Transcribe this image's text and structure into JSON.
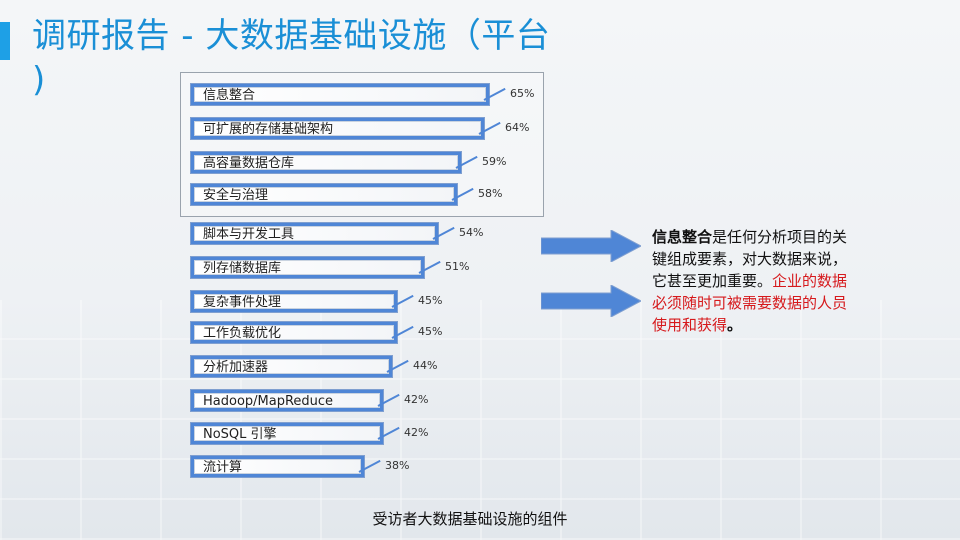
{
  "title": {
    "line1": "调研报告 - 大数据基础设施（平台",
    "line2": ")"
  },
  "chart_data": {
    "type": "bar",
    "categories": [
      "信息整合",
      "可扩展的存储基础架构",
      "高容量数据仓库",
      "安全与治理",
      "脚本与开发工具",
      "列存储数据库",
      "复杂事件处理",
      "工作负载优化",
      "分析加速器",
      "Hadoop/MapReduce",
      "NoSQL 引擎",
      "流计算"
    ],
    "values": [
      65,
      64,
      59,
      58,
      54,
      51,
      45,
      45,
      44,
      42,
      42,
      38
    ],
    "value_labels": [
      "65%",
      "64%",
      "59%",
      "58%",
      "54%",
      "51%",
      "45%",
      "45%",
      "44%",
      "42%",
      "42%",
      "38%"
    ],
    "highlighted_group": [
      "信息整合",
      "可扩展的存储基础架构",
      "高容量数据仓库",
      "安全与治理"
    ],
    "bar_color": "#4f86d6",
    "xlabel": "",
    "ylabel": ""
  },
  "callout": {
    "bold_text": "信息整合",
    "normal_text": "是任何分析项目的关键组成要素，对大数据来说，它甚至更加重要。",
    "red_text": "企业的数据必须随时可被需要数据的人员使用和获得",
    "end_text": "。"
  },
  "footer": "受访者大数据基础设施的组件",
  "colors": {
    "title": "#1a8fd6",
    "accent": "#1ea0e6",
    "callout_red": "#d6191c",
    "arrow": "#4f86d6"
  }
}
